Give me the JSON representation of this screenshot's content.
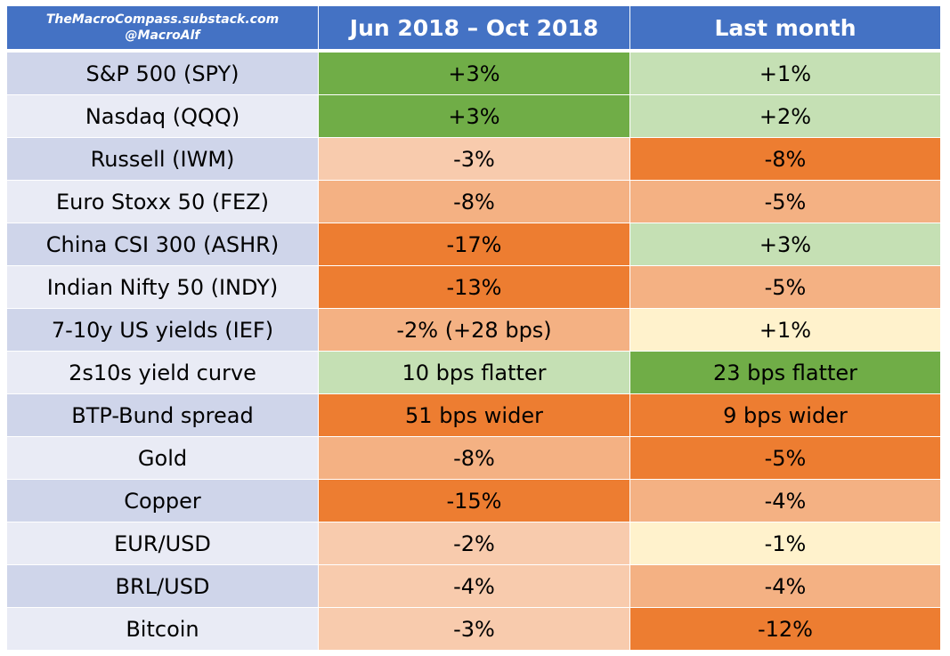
{
  "header": {
    "brand_line1": "TheMacroCompass.substack.com",
    "brand_line2": "@MacroAlf",
    "col_period": "Jun 2018 – Oct 2018",
    "col_last_month": "Last month"
  },
  "colors": {
    "header_blue": "#4472c4",
    "label_dark": "#cfd5ea",
    "label_light": "#e9ebf5",
    "dark_green": "#70ad47",
    "light_green": "#c5e0b4",
    "pale_yellow": "#fff2cc",
    "light_orange": "#f8cbad",
    "medium_orange": "#f4b183",
    "strong_orange": "#ed7d31"
  },
  "rows": [
    {
      "label": "S&P 500 (SPY)",
      "period": "+3%",
      "period_color": "#70ad47",
      "last": "+1%",
      "last_color": "#c5e0b4"
    },
    {
      "label": "Nasdaq (QQQ)",
      "period": "+3%",
      "period_color": "#70ad47",
      "last": "+2%",
      "last_color": "#c5e0b4"
    },
    {
      "label": "Russell (IWM)",
      "period": "-3%",
      "period_color": "#f8cbad",
      "last": "-8%",
      "last_color": "#ed7d31"
    },
    {
      "label": "Euro Stoxx 50 (FEZ)",
      "period": "-8%",
      "period_color": "#f4b183",
      "last": "-5%",
      "last_color": "#f4b183"
    },
    {
      "label": "China CSI 300 (ASHR)",
      "period": "-17%",
      "period_color": "#ed7d31",
      "last": "+3%",
      "last_color": "#c5e0b4"
    },
    {
      "label": "Indian Nifty 50 (INDY)",
      "period": "-13%",
      "period_color": "#ed7d31",
      "last": "-5%",
      "last_color": "#f4b183"
    },
    {
      "label": "7-10y US yields (IEF)",
      "period": "-2% (+28 bps)",
      "period_color": "#f4b183",
      "last": "+1%",
      "last_color": "#fff2cc"
    },
    {
      "label": "2s10s yield curve",
      "period": "10 bps flatter",
      "period_color": "#c5e0b4",
      "last": "23 bps flatter",
      "last_color": "#70ad47"
    },
    {
      "label": "BTP-Bund spread",
      "period": "51 bps wider",
      "period_color": "#ed7d31",
      "last": "9 bps wider",
      "last_color": "#ed7d31"
    },
    {
      "label": "Gold",
      "period": "-8%",
      "period_color": "#f4b183",
      "last": "-5%",
      "last_color": "#ed7d31"
    },
    {
      "label": "Copper",
      "period": "-15%",
      "period_color": "#ed7d31",
      "last": "-4%",
      "last_color": "#f4b183"
    },
    {
      "label": "EUR/USD",
      "period": "-2%",
      "period_color": "#f8cbad",
      "last": "-1%",
      "last_color": "#fff2cc"
    },
    {
      "label": "BRL/USD",
      "period": "-4%",
      "period_color": "#f8cbad",
      "last": "-4%",
      "last_color": "#f4b183"
    },
    {
      "label": "Bitcoin",
      "period": "-3%",
      "period_color": "#f8cbad",
      "last": "-12%",
      "last_color": "#ed7d31"
    }
  ]
}
